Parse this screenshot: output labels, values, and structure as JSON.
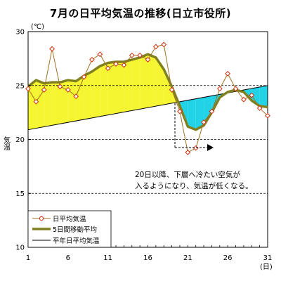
{
  "chart_data": {
    "type": "line",
    "title": "7月の日平均気温の推移(日立市役所)",
    "ylabel_unit": "(℃)",
    "ylabel": "気温",
    "xlabel_unit": "(日)",
    "xlim": [
      1,
      31
    ],
    "ylim": [
      10,
      30
    ],
    "yticks": [
      10,
      15,
      20,
      25,
      30
    ],
    "xticks": [
      1,
      6,
      11,
      16,
      21,
      26,
      31
    ],
    "grid_y_dashed": [
      15,
      20,
      25
    ],
    "annotation": {
      "line1": "20日以降、下層へ冷たい空気が",
      "line2": "入るようになり、気温が低くなる。",
      "marker_day": 19
    },
    "series": [
      {
        "name": "日平均気温",
        "style": "markers",
        "color": "#a07020",
        "x": [
          1,
          2,
          3,
          4,
          5,
          6,
          7,
          8,
          9,
          10,
          11,
          12,
          13,
          14,
          15,
          16,
          17,
          18,
          19,
          20,
          21,
          22,
          23,
          24,
          25,
          26,
          27,
          28,
          29,
          30,
          31
        ],
        "values": [
          24.7,
          23.5,
          24.6,
          28.4,
          24.9,
          24.6,
          24.0,
          25.8,
          27.4,
          27.9,
          26.6,
          27.0,
          26.9,
          27.8,
          27.8,
          27.4,
          28.6,
          28.8,
          24.6,
          22.6,
          18.8,
          19.2,
          21.6,
          22.6,
          24.7,
          26.1,
          24.7,
          23.7,
          24.1,
          22.9,
          22.2
        ]
      },
      {
        "name": "5日間移動平均",
        "style": "thick-line",
        "color": "#808020",
        "x": [
          1,
          2,
          3,
          4,
          5,
          6,
          7,
          8,
          9,
          10,
          11,
          12,
          13,
          14,
          15,
          16,
          17,
          18,
          19,
          20,
          21,
          22,
          23,
          24,
          25,
          26,
          27,
          28,
          29,
          30,
          31
        ],
        "values": [
          24.9,
          25.5,
          25.2,
          25.3,
          25.3,
          25.5,
          25.4,
          25.9,
          26.3,
          26.8,
          27.1,
          27.2,
          27.2,
          27.4,
          27.6,
          27.9,
          27.6,
          26.5,
          24.9,
          23.1,
          21.2,
          20.9,
          21.3,
          22.5,
          23.9,
          24.4,
          24.6,
          24.4,
          23.6,
          23.1,
          23.0
        ]
      },
      {
        "name": "平年日平均気温",
        "style": "thin-line",
        "color": "#000000",
        "x": [
          1,
          31
        ],
        "values": [
          20.9,
          25.0
        ]
      }
    ],
    "fill_colors": {
      "above_normal": "#f5f532",
      "below_normal": "#22d3e8"
    },
    "legend": {
      "position": "bottom-left"
    }
  }
}
